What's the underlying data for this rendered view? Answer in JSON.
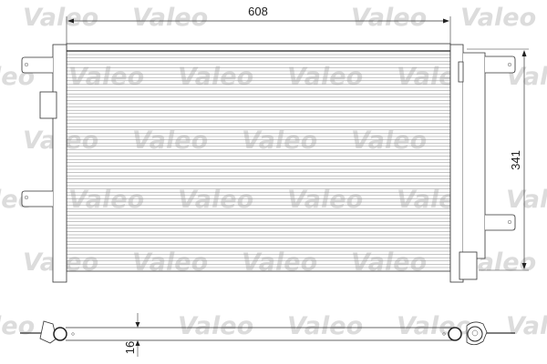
{
  "watermark": {
    "text": "Valeo",
    "color": "#dcdcdc"
  },
  "dimensions": {
    "width": "608",
    "height": "341",
    "depth": "16"
  },
  "line_color": "#333333"
}
